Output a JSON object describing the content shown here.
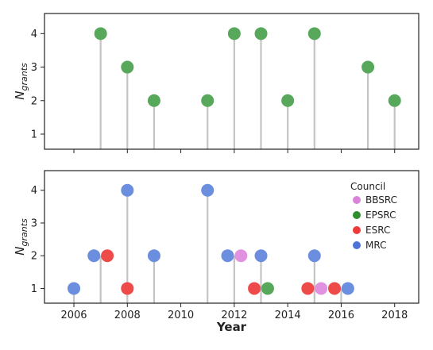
{
  "chart_data": [
    {
      "type": "scatter",
      "style": "lollipop",
      "panel": "top",
      "ylabel": "N",
      "ylabel_subscript": "grants",
      "xlim": [
        2004.9,
        2018.9
      ],
      "ylim": [
        0.55,
        4.6
      ],
      "yticks": [
        "1",
        "2",
        "3",
        "4"
      ],
      "xticks": [
        2006,
        2008,
        2010,
        2012,
        2014,
        2016,
        2018
      ],
      "color": "#57a85a",
      "points": [
        {
          "x": 2007,
          "y": 4
        },
        {
          "x": 2008,
          "y": 3
        },
        {
          "x": 2009,
          "y": 2
        },
        {
          "x": 2011,
          "y": 2
        },
        {
          "x": 2012,
          "y": 4
        },
        {
          "x": 2013,
          "y": 4
        },
        {
          "x": 2014,
          "y": 2
        },
        {
          "x": 2015,
          "y": 4
        },
        {
          "x": 2017,
          "y": 3
        },
        {
          "x": 2018,
          "y": 2
        }
      ]
    },
    {
      "type": "scatter",
      "style": "lollipop",
      "panel": "bottom",
      "xlabel": "Year",
      "ylabel": "N",
      "ylabel_subscript": "grants",
      "xlim": [
        2004.9,
        2018.9
      ],
      "ylim": [
        0.55,
        4.6
      ],
      "yticks": [
        "1",
        "2",
        "3",
        "4"
      ],
      "xticks": [
        "2006",
        "2008",
        "2010",
        "2012",
        "2014",
        "2016",
        "2018"
      ],
      "legend": {
        "title": "Council",
        "position": "top-right",
        "entries": [
          {
            "name": "BBSRC",
            "color": "#da83da"
          },
          {
            "name": "EPSRC",
            "color": "#2f8f2f"
          },
          {
            "name": "ESRC",
            "color": "#ef3a3a"
          },
          {
            "name": "MRC",
            "color": "#4d73d9"
          }
        ]
      },
      "stems": [
        {
          "x": 2006,
          "y": 1
        },
        {
          "x": 2007,
          "y": 2
        },
        {
          "x": 2008,
          "y": 4
        },
        {
          "x": 2009,
          "y": 2
        },
        {
          "x": 2011,
          "y": 4
        },
        {
          "x": 2012,
          "y": 2
        },
        {
          "x": 2013,
          "y": 2
        },
        {
          "x": 2015,
          "y": 2
        },
        {
          "x": 2016,
          "y": 1
        }
      ],
      "series": [
        {
          "name": "BBSRC",
          "color": "#e092e0",
          "points": [
            {
              "x": 2012.25,
              "y": 2
            },
            {
              "x": 2015.25,
              "y": 1
            }
          ]
        },
        {
          "name": "EPSRC",
          "color": "#57a85a",
          "points": [
            {
              "x": 2013.25,
              "y": 1
            }
          ]
        },
        {
          "name": "ESRC",
          "color": "#ef4a4a",
          "points": [
            {
              "x": 2007.25,
              "y": 2
            },
            {
              "x": 2008,
              "y": 1
            },
            {
              "x": 2012.75,
              "y": 1
            },
            {
              "x": 2014.75,
              "y": 1
            },
            {
              "x": 2015.75,
              "y": 1
            }
          ]
        },
        {
          "name": "MRC",
          "color": "#6b8ede",
          "points": [
            {
              "x": 2006,
              "y": 1
            },
            {
              "x": 2006.75,
              "y": 2
            },
            {
              "x": 2008,
              "y": 4
            },
            {
              "x": 2009,
              "y": 2
            },
            {
              "x": 2011,
              "y": 4
            },
            {
              "x": 2011.75,
              "y": 2
            },
            {
              "x": 2013,
              "y": 2
            },
            {
              "x": 2015,
              "y": 2
            },
            {
              "x": 2016.25,
              "y": 1
            }
          ]
        }
      ]
    }
  ]
}
